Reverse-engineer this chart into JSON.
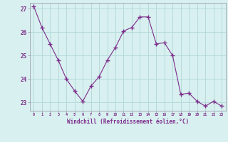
{
  "x": [
    0,
    1,
    2,
    3,
    4,
    5,
    6,
    7,
    8,
    9,
    10,
    11,
    12,
    13,
    14,
    15,
    16,
    17,
    18,
    19,
    20,
    21,
    22,
    23
  ],
  "y": [
    27.1,
    26.2,
    25.5,
    24.8,
    24.0,
    23.5,
    23.05,
    23.7,
    24.1,
    24.8,
    25.35,
    26.05,
    26.2,
    26.65,
    26.65,
    25.5,
    25.55,
    25.0,
    23.35,
    23.4,
    23.05,
    22.85,
    23.05,
    22.85
  ],
  "line_color": "#7b2d8b",
  "marker": "+",
  "marker_color": "#7b2d8b",
  "bg_color": "#d9f0f0",
  "grid_color": "#b0d8d8",
  "xlabel": "Windchill (Refroidissement éolien,°C)",
  "xlabel_color": "#7b2d8b",
  "tick_color": "#7b2d8b",
  "spine_color": "#9090a0",
  "ylim": [
    22.65,
    27.25
  ],
  "xlim": [
    -0.5,
    23.5
  ],
  "yticks": [
    23,
    24,
    25,
    26,
    27
  ],
  "xticks": [
    0,
    1,
    2,
    3,
    4,
    5,
    6,
    7,
    8,
    9,
    10,
    11,
    12,
    13,
    14,
    15,
    16,
    17,
    18,
    19,
    20,
    21,
    22,
    23
  ]
}
